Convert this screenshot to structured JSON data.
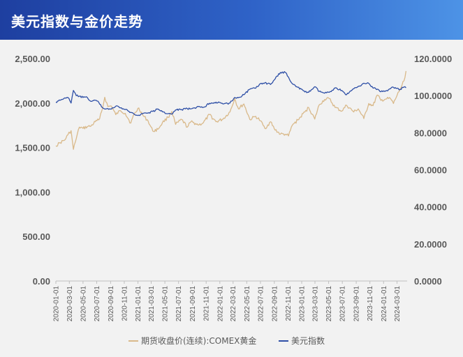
{
  "header": {
    "title": "美元指数与金价走势"
  },
  "chart_data": {
    "type": "line",
    "left_axis": {
      "ticks": [
        "2,500.00",
        "2,000.00",
        "1,500.00",
        "1,000.00",
        "500.00",
        "0.00"
      ],
      "values": [
        2500,
        2000,
        1500,
        1000,
        500,
        0
      ],
      "ylim": [
        0,
        2500
      ]
    },
    "right_axis": {
      "ticks": [
        "120.0000",
        "100.0000",
        "80.0000",
        "60.0000",
        "40.0000",
        "20.0000",
        "0.0000"
      ],
      "values": [
        120,
        100,
        80,
        60,
        40,
        20,
        0
      ],
      "ylim": [
        0,
        120
      ]
    },
    "x_ticks": [
      "2020-01-01",
      "2020-03-01",
      "2020-05-01",
      "2020-07-01",
      "2020-09-01",
      "2020-11-01",
      "2021-01-01",
      "2021-03-01",
      "2021-05-01",
      "2021-07-01",
      "2021-09-01",
      "2021-11-01",
      "2022-01-01",
      "2022-03-01",
      "2022-05-01",
      "2022-07-01",
      "2022-09-01",
      "2022-11-01",
      "2023-01-01",
      "2023-03-01",
      "2023-05-01",
      "2023-07-01",
      "2023-09-01",
      "2023-11-01",
      "2024-01-01",
      "2024-03-01"
    ],
    "xlim": [
      "2020-01-01",
      "2024-04-15"
    ],
    "series": [
      {
        "name": "期货收盘价(连续):COMEX黄金",
        "axis": "left",
        "color": "#d9b98a",
        "x": [
          "2020-01-01",
          "2020-01-20",
          "2020-02-10",
          "2020-02-24",
          "2020-03-09",
          "2020-03-19",
          "2020-04-01",
          "2020-04-15",
          "2020-05-01",
          "2020-05-20",
          "2020-06-05",
          "2020-06-25",
          "2020-07-10",
          "2020-07-27",
          "2020-08-06",
          "2020-08-20",
          "2020-09-05",
          "2020-09-24",
          "2020-10-15",
          "2020-11-05",
          "2020-11-30",
          "2020-12-15",
          "2021-01-05",
          "2021-01-25",
          "2021-02-15",
          "2021-03-08",
          "2021-03-31",
          "2021-04-20",
          "2021-05-15",
          "2021-06-01",
          "2021-06-18",
          "2021-07-15",
          "2021-08-09",
          "2021-08-25",
          "2021-09-15",
          "2021-09-30",
          "2021-10-20",
          "2021-11-16",
          "2021-12-15",
          "2022-01-15",
          "2022-02-15",
          "2022-03-08",
          "2022-03-25",
          "2022-04-18",
          "2022-05-15",
          "2022-06-10",
          "2022-07-01",
          "2022-07-21",
          "2022-08-15",
          "2022-09-01",
          "2022-09-28",
          "2022-10-20",
          "2022-11-03",
          "2022-11-20",
          "2022-12-15",
          "2023-01-15",
          "2023-02-01",
          "2023-02-28",
          "2023-03-20",
          "2023-04-13",
          "2023-05-04",
          "2023-05-30",
          "2023-06-29",
          "2023-07-20",
          "2023-08-21",
          "2023-09-10",
          "2023-10-05",
          "2023-10-27",
          "2023-11-15",
          "2023-12-04",
          "2023-12-20",
          "2024-01-10",
          "2024-02-01",
          "2024-02-14",
          "2024-03-01",
          "2024-03-15",
          "2024-04-01",
          "2024-04-10"
        ],
        "values": [
          1520,
          1555,
          1585,
          1645,
          1690,
          1480,
          1600,
          1730,
          1715,
          1735,
          1740,
          1790,
          1810,
          1940,
          2065,
          1960,
          1965,
          1870,
          1915,
          1885,
          1775,
          1875,
          1945,
          1855,
          1800,
          1685,
          1705,
          1780,
          1840,
          1905,
          1760,
          1815,
          1730,
          1790,
          1770,
          1755,
          1780,
          1870,
          1790,
          1820,
          1900,
          2050,
          1935,
          1990,
          1815,
          1850,
          1800,
          1715,
          1790,
          1710,
          1650,
          1650,
          1630,
          1750,
          1810,
          1900,
          1950,
          1820,
          1980,
          2040,
          2050,
          1950,
          1910,
          1975,
          1900,
          1935,
          1825,
          1995,
          1970,
          2090,
          2030,
          2045,
          2050,
          1995,
          2085,
          2155,
          2250,
          2360
        ]
      },
      {
        "name": "美元指数",
        "axis": "right",
        "color": "#2e4fa6",
        "x": [
          "2020-01-01",
          "2020-01-20",
          "2020-02-10",
          "2020-02-24",
          "2020-03-09",
          "2020-03-19",
          "2020-04-01",
          "2020-04-15",
          "2020-05-01",
          "2020-05-20",
          "2020-06-05",
          "2020-06-25",
          "2020-07-10",
          "2020-07-27",
          "2020-08-06",
          "2020-08-20",
          "2020-09-05",
          "2020-09-24",
          "2020-10-15",
          "2020-11-05",
          "2020-11-30",
          "2020-12-15",
          "2021-01-05",
          "2021-01-25",
          "2021-02-15",
          "2021-03-08",
          "2021-03-31",
          "2021-04-20",
          "2021-05-15",
          "2021-06-01",
          "2021-06-18",
          "2021-07-15",
          "2021-08-09",
          "2021-08-25",
          "2021-09-15",
          "2021-09-30",
          "2021-10-20",
          "2021-11-16",
          "2021-12-15",
          "2022-01-15",
          "2022-02-15",
          "2022-03-08",
          "2022-03-25",
          "2022-04-18",
          "2022-05-15",
          "2022-06-10",
          "2022-07-01",
          "2022-07-21",
          "2022-08-15",
          "2022-09-01",
          "2022-09-28",
          "2022-10-20",
          "2022-11-03",
          "2022-11-20",
          "2022-12-15",
          "2023-01-15",
          "2023-02-01",
          "2023-02-28",
          "2023-03-20",
          "2023-04-13",
          "2023-05-04",
          "2023-05-30",
          "2023-06-29",
          "2023-07-20",
          "2023-08-21",
          "2023-09-10",
          "2023-10-05",
          "2023-10-27",
          "2023-11-15",
          "2023-12-04",
          "2023-12-20",
          "2024-01-10",
          "2024-02-01",
          "2024-02-14",
          "2024-03-01",
          "2024-03-15",
          "2024-04-01",
          "2024-04-10"
        ],
        "values": [
          96.5,
          97.5,
          98.8,
          99.0,
          96.0,
          102.8,
          100.0,
          99.7,
          99.0,
          99.0,
          96.9,
          97.5,
          96.5,
          93.5,
          92.8,
          93.0,
          92.8,
          94.3,
          93.4,
          92.5,
          91.0,
          90.0,
          89.5,
          90.5,
          90.6,
          91.5,
          92.8,
          91.3,
          90.3,
          90.0,
          92.3,
          92.5,
          93.0,
          92.9,
          93.1,
          94.2,
          93.7,
          95.9,
          96.5,
          95.5,
          96.0,
          99.0,
          98.9,
          100.5,
          103.5,
          104.0,
          106.5,
          107.0,
          106.0,
          108.5,
          112.5,
          112.5,
          110.0,
          106.5,
          104.5,
          102.0,
          101.8,
          104.8,
          102.3,
          101.3,
          101.8,
          104.2,
          102.8,
          100.5,
          103.7,
          105.0,
          106.7,
          106.6,
          104.1,
          103.5,
          102.1,
          102.5,
          103.8,
          104.5,
          104.0,
          103.4,
          104.6,
          104.2
        ]
      }
    ],
    "legend": "bottom-center",
    "grid": false
  }
}
